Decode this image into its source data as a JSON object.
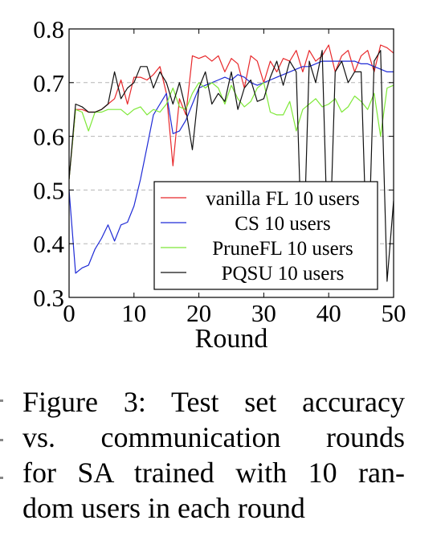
{
  "caption": {
    "line1": "Figure 3: Test set accuracy",
    "line2": "vs. communication rounds",
    "line3": "for SA trained with 10 ran-",
    "line4": "dom users in each round"
  },
  "chart_data": {
    "type": "line",
    "xlabel": "Round",
    "ylabel": "",
    "xlim": [
      0,
      50
    ],
    "ylim": [
      0.3,
      0.8
    ],
    "xticks": [
      0,
      10,
      20,
      30,
      40,
      50
    ],
    "yticks": [
      0.3,
      0.4,
      0.5,
      0.6,
      0.7,
      0.8
    ],
    "xtick_labels": [
      "0",
      "10",
      "20",
      "30",
      "40",
      "50"
    ],
    "ytick_labels": [
      "0.3",
      "0.4",
      "0.5",
      "0.6",
      "0.7",
      "0.8"
    ],
    "grid": "horizontal dashed",
    "legend_position": "lower-right",
    "series": [
      {
        "name": "vanilla FL 10 users",
        "color": "#e8282b",
        "x": [
          0,
          1,
          2,
          3,
          4,
          5,
          6,
          7,
          8,
          9,
          10,
          11,
          12,
          13,
          14,
          15,
          16,
          17,
          18,
          19,
          20,
          21,
          22,
          23,
          24,
          25,
          26,
          27,
          28,
          29,
          30,
          31,
          32,
          33,
          34,
          35,
          36,
          37,
          38,
          39,
          40,
          41,
          42,
          43,
          44,
          45,
          46,
          47,
          48,
          49,
          50
        ],
        "values": [
          0.52,
          0.65,
          0.65,
          0.645,
          0.645,
          0.65,
          0.66,
          0.67,
          0.705,
          0.66,
          0.71,
          0.71,
          0.705,
          0.715,
          0.73,
          0.68,
          0.545,
          0.67,
          0.64,
          0.75,
          0.745,
          0.75,
          0.74,
          0.75,
          0.72,
          0.745,
          0.735,
          0.69,
          0.75,
          0.74,
          0.7,
          0.74,
          0.72,
          0.745,
          0.74,
          0.76,
          0.72,
          0.76,
          0.74,
          0.75,
          0.77,
          0.72,
          0.75,
          0.76,
          0.72,
          0.75,
          0.76,
          0.72,
          0.77,
          0.765,
          0.755
        ]
      },
      {
        "name": "CS 10 users",
        "color": "#1f2bd6",
        "x": [
          0,
          1,
          2,
          3,
          4,
          5,
          6,
          7,
          8,
          9,
          10,
          11,
          12,
          13,
          14,
          15,
          16,
          17,
          18,
          19,
          20,
          21,
          22,
          23,
          24,
          25,
          26,
          27,
          28,
          29,
          30,
          31,
          32,
          33,
          34,
          35,
          36,
          37,
          38,
          39,
          40,
          41,
          42,
          43,
          44,
          45,
          46,
          47,
          48,
          49,
          50
        ],
        "values": [
          0.5,
          0.345,
          0.355,
          0.36,
          0.39,
          0.41,
          0.435,
          0.405,
          0.435,
          0.44,
          0.47,
          0.52,
          0.58,
          0.64,
          0.66,
          0.68,
          0.605,
          0.61,
          0.63,
          0.66,
          0.69,
          0.695,
          0.7,
          0.705,
          0.71,
          0.705,
          0.715,
          0.71,
          0.7,
          0.695,
          0.7,
          0.705,
          0.71,
          0.715,
          0.72,
          0.725,
          0.73,
          0.73,
          0.735,
          0.74,
          0.74,
          0.74,
          0.74,
          0.74,
          0.74,
          0.735,
          0.735,
          0.73,
          0.725,
          0.72,
          0.72
        ]
      },
      {
        "name": "PruneFL 10 users",
        "color": "#7ee838",
        "x": [
          0,
          1,
          2,
          3,
          4,
          5,
          6,
          7,
          8,
          9,
          10,
          11,
          12,
          13,
          14,
          15,
          16,
          17,
          18,
          19,
          20,
          21,
          22,
          23,
          24,
          25,
          26,
          27,
          28,
          29,
          30,
          31,
          32,
          33,
          34,
          35,
          36,
          37,
          38,
          39,
          40,
          41,
          42,
          43,
          44,
          45,
          46,
          47,
          48,
          49,
          50
        ],
        "values": [
          0.52,
          0.65,
          0.645,
          0.61,
          0.645,
          0.645,
          0.65,
          0.65,
          0.65,
          0.64,
          0.65,
          0.655,
          0.64,
          0.65,
          0.645,
          0.66,
          0.69,
          0.655,
          0.65,
          0.68,
          0.7,
          0.69,
          0.7,
          0.69,
          0.66,
          0.695,
          0.67,
          0.655,
          0.665,
          0.69,
          0.7,
          0.645,
          0.64,
          0.64,
          0.665,
          0.61,
          0.65,
          0.66,
          0.67,
          0.655,
          0.66,
          0.67,
          0.645,
          0.655,
          0.675,
          0.665,
          0.65,
          0.68,
          0.6,
          0.69,
          0.695
        ]
      },
      {
        "name": "PQSU 10 users",
        "color": "#111111",
        "x": [
          0,
          1,
          2,
          3,
          4,
          5,
          6,
          7,
          8,
          9,
          10,
          11,
          12,
          13,
          14,
          15,
          16,
          17,
          18,
          19,
          20,
          21,
          22,
          23,
          24,
          25,
          26,
          27,
          28,
          29,
          30,
          31,
          32,
          33,
          34,
          35,
          36,
          37,
          38,
          39,
          40,
          41,
          42,
          43,
          44,
          45,
          46,
          47,
          48,
          49,
          50
        ],
        "values": [
          0.52,
          0.66,
          0.655,
          0.645,
          0.645,
          0.65,
          0.66,
          0.72,
          0.67,
          0.69,
          0.7,
          0.73,
          0.73,
          0.69,
          0.72,
          0.7,
          0.66,
          0.7,
          0.65,
          0.575,
          0.69,
          0.72,
          0.66,
          0.68,
          0.665,
          0.72,
          0.65,
          0.69,
          0.705,
          0.665,
          0.67,
          0.71,
          0.74,
          0.695,
          0.74,
          0.72,
          0.33,
          0.74,
          0.7,
          0.76,
          0.33,
          0.72,
          0.74,
          0.7,
          0.72,
          0.72,
          0.33,
          0.74,
          0.76,
          0.33,
          0.48
        ]
      }
    ]
  }
}
